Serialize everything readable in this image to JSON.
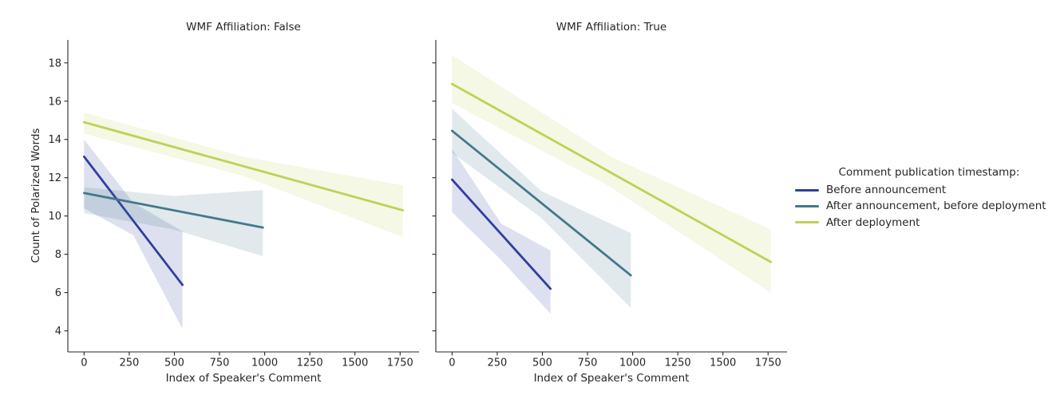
{
  "figure": {
    "background": "#ffffff",
    "text_color": "#262626",
    "spine_color": "#262626"
  },
  "chart_data": {
    "type": "line",
    "subtype": "regression-with-confidence-bands",
    "xlabel": "Index of Speaker's Comment",
    "ylabel": "Count of Polarized Words",
    "x_ticks": [
      0,
      250,
      500,
      750,
      1000,
      1250,
      1500,
      1750
    ],
    "y_ticks": [
      4,
      6,
      8,
      10,
      12,
      14,
      16,
      18
    ],
    "xlim": [
      -90,
      1855
    ],
    "ylim": [
      2.9,
      19.2
    ],
    "grid": false,
    "band_opacity": 0.16,
    "legend_position": "right",
    "legend": {
      "title": "Comment publication timestamp:",
      "entries": [
        {
          "label": "Before announcement",
          "color": "#2e3f9e"
        },
        {
          "label": "After announcement, before deployment",
          "color": "#44788a"
        },
        {
          "label": "After deployment",
          "color": "#bcd257"
        }
      ]
    },
    "facets": [
      {
        "title": "WMF Affiliation: False",
        "series": [
          {
            "name": "Before announcement",
            "color": "#2e3f9e",
            "x": [
              0,
              545
            ],
            "y": [
              13.1,
              6.4
            ],
            "ci": {
              "x": [
                0,
                272,
                545
              ],
              "upper": [
                14.0,
                10.7,
                9.2
              ],
              "lower": [
                10.4,
                9.0,
                4.1
              ]
            }
          },
          {
            "name": "After announcement, before deployment",
            "color": "#44788a",
            "x": [
              0,
              990
            ],
            "y": [
              11.2,
              9.4
            ],
            "ci": {
              "x": [
                0,
                495,
                990
              ],
              "upper": [
                11.5,
                11.05,
                11.35
              ],
              "lower": [
                10.15,
                9.3,
                7.9
              ]
            }
          },
          {
            "name": "After deployment",
            "color": "#bcd257",
            "x": [
              0,
              1765
            ],
            "y": [
              14.9,
              10.3
            ],
            "ci": {
              "x": [
                0,
                880,
                1765
              ],
              "upper": [
                15.4,
                13.1,
                11.6
              ],
              "lower": [
                14.3,
                12.1,
                8.9
              ]
            }
          }
        ]
      },
      {
        "title": "WMF Affiliation: True",
        "series": [
          {
            "name": "Before announcement",
            "color": "#2e3f9e",
            "x": [
              0,
              545
            ],
            "y": [
              11.9,
              6.2
            ],
            "ci": {
              "x": [
                0,
                272,
                545
              ],
              "upper": [
                13.5,
                9.6,
                8.2
              ],
              "lower": [
                10.2,
                7.7,
                4.9
              ]
            }
          },
          {
            "name": "After announcement, before deployment",
            "color": "#44788a",
            "x": [
              0,
              990
            ],
            "y": [
              14.45,
              6.9
            ],
            "ci": {
              "x": [
                0,
                495,
                990
              ],
              "upper": [
                15.6,
                11.3,
                9.1
              ],
              "lower": [
                13.3,
                9.9,
                5.2
              ]
            }
          },
          {
            "name": "After deployment",
            "color": "#bcd257",
            "x": [
              0,
              1765
            ],
            "y": [
              16.9,
              7.6
            ],
            "ci": {
              "x": [
                0,
                880,
                1765
              ],
              "upper": [
                18.4,
                13.1,
                9.3
              ],
              "lower": [
                15.9,
                11.5,
                6.0
              ]
            }
          }
        ]
      }
    ]
  }
}
